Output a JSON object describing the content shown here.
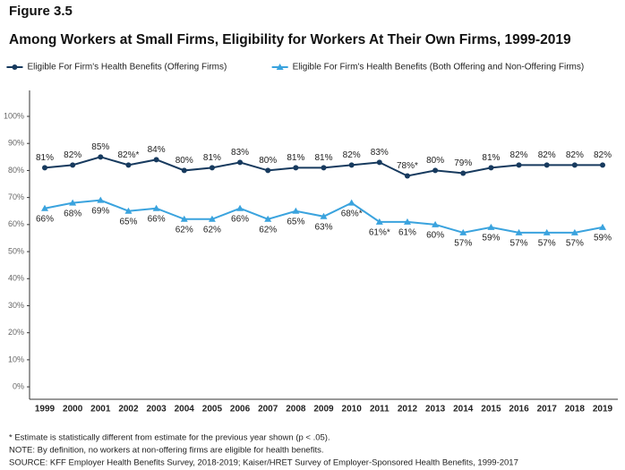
{
  "chart_data": {
    "type": "line",
    "figure_label": "Figure 3.5",
    "title": "Among Workers at Small Firms, Eligibility for Workers At Their Own Firms, 1999-2019",
    "categories": [
      "1999",
      "2000",
      "2001",
      "2002",
      "2003",
      "2004",
      "2005",
      "2006",
      "2007",
      "2008",
      "2009",
      "2010",
      "2011",
      "2012",
      "2013",
      "2014",
      "2015",
      "2016",
      "2017",
      "2018",
      "2019"
    ],
    "series": [
      {
        "name": "Eligible For Firm's Health Benefits (Offering Firms)",
        "color": "#173a5e",
        "marker": "circle",
        "values": [
          81,
          82,
          85,
          82,
          84,
          80,
          81,
          83,
          80,
          81,
          81,
          82,
          83,
          78,
          80,
          79,
          81,
          82,
          82,
          82,
          82
        ],
        "value_labels": [
          "81%",
          "82%",
          "85%",
          "82%*",
          "84%",
          "80%",
          "81%",
          "83%",
          "80%",
          "81%",
          "81%",
          "82%",
          "83%",
          "78%*",
          "80%",
          "79%",
          "81%",
          "82%",
          "82%",
          "82%",
          "82%"
        ]
      },
      {
        "name": "Eligible For Firm's Health Benefits (Both Offering and Non-Offering Firms)",
        "color": "#3aa3de",
        "marker": "triangle",
        "values": [
          66,
          68,
          69,
          65,
          66,
          62,
          62,
          66,
          62,
          65,
          63,
          68,
          61,
          61,
          60,
          57,
          59,
          57,
          57,
          57,
          59
        ],
        "value_labels": [
          "66%",
          "68%",
          "69%",
          "65%",
          "66%",
          "62%",
          "62%",
          "66%",
          "62%",
          "65%",
          "63%",
          "68%*",
          "61%*",
          "61%",
          "60%",
          "57%",
          "59%",
          "57%",
          "57%",
          "57%",
          "59%"
        ]
      }
    ],
    "ylim": [
      -4.6,
      109.6
    ],
    "yticks": [
      {
        "value": 0,
        "label": "0%"
      },
      {
        "value": 10,
        "label": "10%"
      },
      {
        "value": 20,
        "label": "20%"
      },
      {
        "value": 30,
        "label": "30%"
      },
      {
        "value": 40,
        "label": "40%"
      },
      {
        "value": 50,
        "label": "50%"
      },
      {
        "value": 60,
        "label": "60%"
      },
      {
        "value": 70,
        "label": "70%"
      },
      {
        "value": 80,
        "label": "80%"
      },
      {
        "value": 90,
        "label": "90%"
      },
      {
        "value": 100,
        "label": "100%"
      }
    ],
    "grid": false,
    "legend": "top",
    "notes": [
      "* Estimate is statistically different from estimate for the previous year shown (p < .05).",
      "NOTE: By definition, no workers at non-offering firms are eligible for health benefits.",
      "SOURCE: KFF Employer Health Benefits Survey, 2018-2019; Kaiser/HRET Survey of Employer-Sponsored Health Benefits, 1999-2017"
    ]
  }
}
